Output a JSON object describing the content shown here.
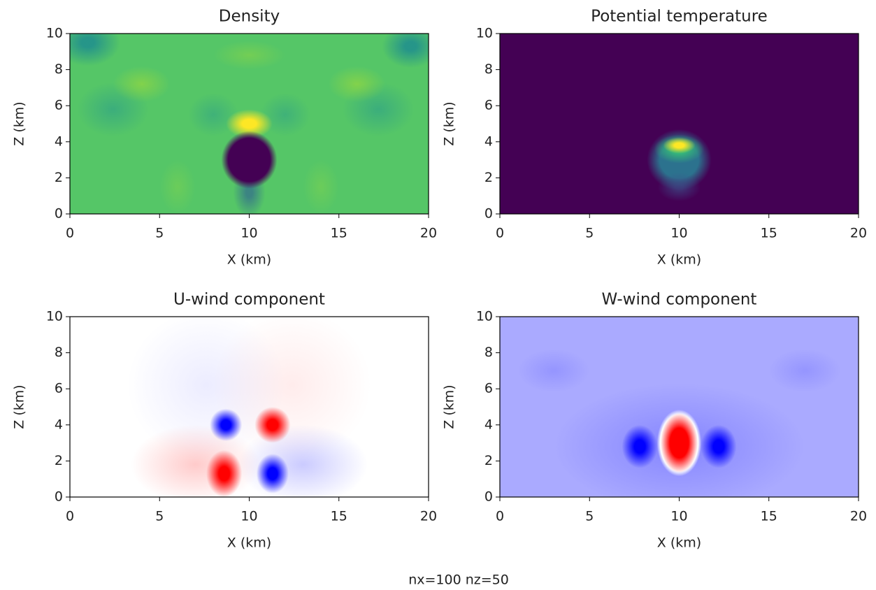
{
  "chart_data": [
    {
      "type": "heatmap",
      "title": "Density",
      "x_label": "X (km)",
      "y_label": "Z (km)",
      "colormap": "viridis",
      "xlim": [
        0,
        20
      ],
      "xticks": [
        0,
        5,
        10,
        15,
        20
      ],
      "ylim": [
        0,
        10
      ],
      "yticks": [
        0,
        2,
        4,
        6,
        8,
        10
      ]
    },
    {
      "type": "heatmap",
      "title": "Potential temperature",
      "x_label": "X (km)",
      "y_label": "Z (km)",
      "colormap": "viridis",
      "xlim": [
        0,
        20
      ],
      "xticks": [
        0,
        5,
        10,
        15,
        20
      ],
      "ylim": [
        0,
        10
      ],
      "yticks": [
        0,
        2,
        4,
        6,
        8,
        10
      ]
    },
    {
      "type": "heatmap",
      "title": "U-wind component",
      "x_label": "X (km)",
      "y_label": "Z (km)",
      "colormap": "bwr",
      "xlim": [
        0,
        20
      ],
      "xticks": [
        0,
        5,
        10,
        15,
        20
      ],
      "ylim": [
        0,
        10
      ],
      "yticks": [
        0,
        2,
        4,
        6,
        8,
        10
      ]
    },
    {
      "type": "heatmap",
      "title": "W-wind component",
      "x_label": "X (km)",
      "y_label": "Z (km)",
      "colormap": "bwr",
      "xlim": [
        0,
        20
      ],
      "xticks": [
        0,
        5,
        10,
        15,
        20
      ],
      "ylim": [
        0,
        10
      ],
      "yticks": [
        0,
        2,
        4,
        6,
        8,
        10
      ]
    }
  ],
  "caption": "nx=100 nz=50"
}
